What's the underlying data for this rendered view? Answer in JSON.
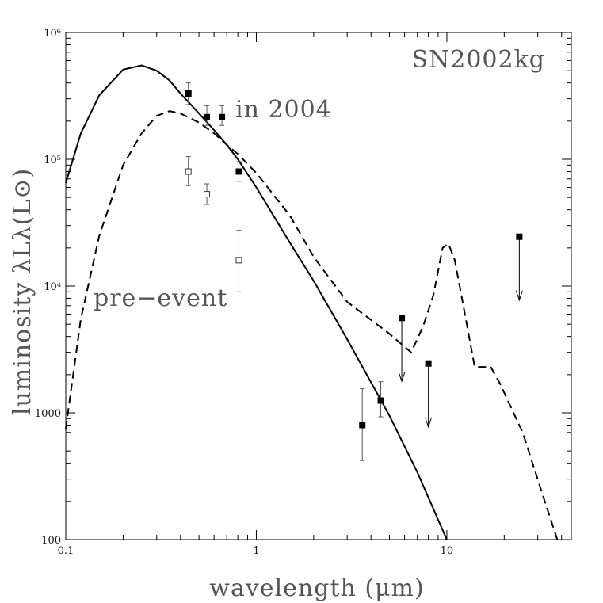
{
  "chart_data": {
    "type": "line",
    "title": "SN2002kg",
    "xlabel": "wavelength (μm)",
    "ylabel": "luminosity λLλ(L⊙)",
    "x_scale": "log",
    "y_scale": "log",
    "xlim": [
      0.1,
      45
    ],
    "ylim": [
      100,
      1000000
    ],
    "x_ticks": [
      {
        "value": 0.1,
        "label": "0.1"
      },
      {
        "value": 1,
        "label": "1"
      },
      {
        "value": 10,
        "label": "10"
      }
    ],
    "y_ticks": [
      {
        "value": 100,
        "label": "100"
      },
      {
        "value": 1000,
        "label": "1000"
      },
      {
        "value": 10000,
        "label": "10⁴"
      },
      {
        "value": 100000,
        "label": "10⁵"
      },
      {
        "value": 1000000,
        "label": "10⁶"
      }
    ],
    "series": [
      {
        "name": "in 2004",
        "style": "solid",
        "x": [
          0.1,
          0.12,
          0.15,
          0.2,
          0.25,
          0.3,
          0.35,
          0.4,
          0.5,
          0.6,
          0.7,
          0.8,
          1.0,
          1.5,
          2.0,
          3.0,
          5.0,
          7.0,
          10.0
        ],
        "y": [
          65000,
          160000,
          320000,
          510000,
          550000,
          500000,
          420000,
          330000,
          230000,
          170000,
          130000,
          100000,
          60000,
          22000,
          11000,
          3800,
          950,
          340,
          100
        ]
      },
      {
        "name": "pre-event",
        "style": "dashed",
        "x": [
          0.1,
          0.12,
          0.15,
          0.2,
          0.25,
          0.3,
          0.35,
          0.4,
          0.5,
          0.6,
          0.7,
          0.8,
          1.0,
          1.5,
          2.0,
          3.0,
          5.0,
          6.5,
          7.5,
          8.5,
          9.5,
          10.2,
          11.0,
          12.0,
          14.0,
          17.0,
          19.0,
          25.0,
          32.0,
          38.0
        ],
        "y": [
          750,
          5500,
          25000,
          90000,
          160000,
          220000,
          240000,
          230000,
          195000,
          160000,
          130000,
          110000,
          78000,
          36000,
          17000,
          7500,
          4200,
          3000,
          4800,
          8500,
          20000,
          21500,
          16000,
          8000,
          2300,
          2300,
          1700,
          700,
          220,
          100
        ]
      }
    ],
    "points_2004": [
      {
        "x": 0.44,
        "y": 330000,
        "lo": 270000,
        "hi": 400000
      },
      {
        "x": 0.55,
        "y": 215000,
        "lo": 185000,
        "hi": 265000
      },
      {
        "x": 0.66,
        "y": 215000,
        "lo": 185000,
        "hi": 265000
      },
      {
        "x": 0.81,
        "y": 80000,
        "lo": 67000,
        "hi": 96000
      },
      {
        "x": 3.6,
        "y": 800,
        "lo": 420,
        "hi": 1550
      },
      {
        "x": 4.5,
        "y": 1250,
        "lo": 930,
        "hi": 1760
      }
    ],
    "points_pre_event": [
      {
        "x": 0.44,
        "y": 80000,
        "lo": 62000,
        "hi": 105000
      },
      {
        "x": 0.55,
        "y": 53000,
        "lo": 44000,
        "hi": 64000
      },
      {
        "x": 0.81,
        "y": 16000,
        "lo": 9000,
        "hi": 27500
      }
    ],
    "upper_limits": [
      {
        "x": 5.8,
        "y": 5600
      },
      {
        "x": 8.0,
        "y": 2450
      },
      {
        "x": 24.0,
        "y": 24500
      }
    ],
    "annotations": [
      {
        "text": "in 2004"
      },
      {
        "text": "pre−event"
      }
    ]
  }
}
